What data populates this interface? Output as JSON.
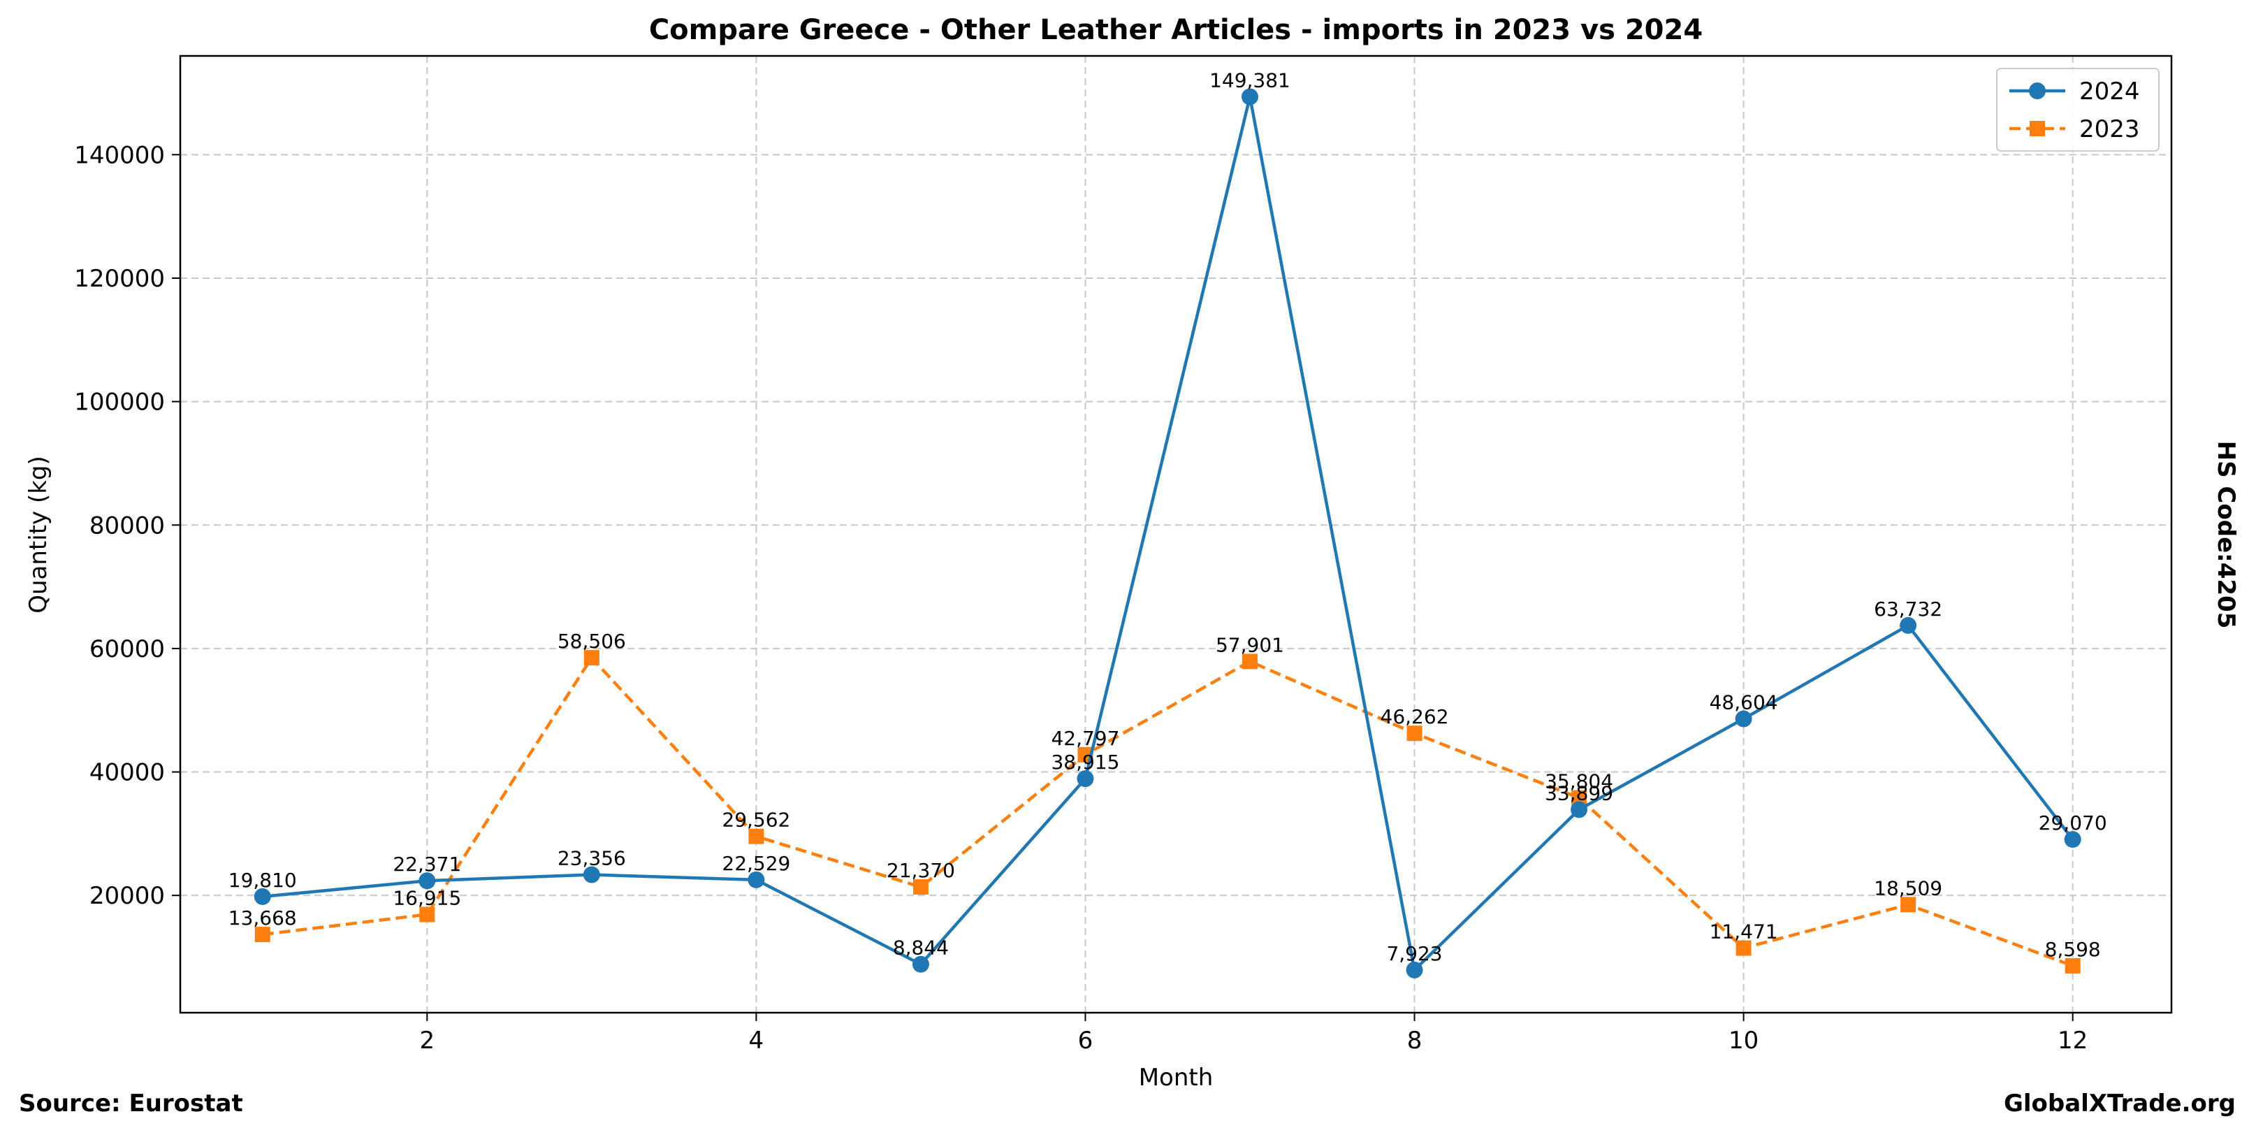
{
  "chart_data": {
    "type": "line",
    "title": "Compare Greece - Other Leather Articles - imports in 2023 vs 2024",
    "xlabel": "Month",
    "ylabel": "Quantity (kg)",
    "xlim": [
      0.5,
      12.6
    ],
    "ylim": [
      1000,
      156000
    ],
    "x_ticks": [
      2,
      4,
      6,
      8,
      10,
      12
    ],
    "y_ticks": [
      20000,
      40000,
      60000,
      80000,
      100000,
      120000,
      140000
    ],
    "grid": true,
    "legend_position": "top-right",
    "x": [
      1,
      2,
      3,
      4,
      5,
      6,
      7,
      8,
      9,
      10,
      11,
      12
    ],
    "series": [
      {
        "name": "2024",
        "color": "#1f77b4",
        "line_style": "solid",
        "marker": "circle",
        "values": [
          19810,
          22371,
          23356,
          22529,
          8844,
          38915,
          149381,
          7923,
          33899,
          48604,
          63732,
          29070
        ],
        "labels": [
          "19,810",
          "22,371",
          "23,356",
          "22,529",
          "8,844",
          "38,915",
          "149,381",
          "7,923",
          "33,899",
          "48,604",
          "63,732",
          "29,070"
        ]
      },
      {
        "name": "2023",
        "color": "#ff7f0e",
        "line_style": "dashed",
        "marker": "square",
        "values": [
          13668,
          16915,
          58506,
          29562,
          21370,
          42797,
          57901,
          46262,
          35804,
          11471,
          18509,
          8598
        ],
        "labels": [
          "13,668",
          "16,915",
          "58,506",
          "29,562",
          "21,370",
          "42,797",
          "57,901",
          "46,262",
          "35,804",
          "11,471",
          "18,509",
          "8,598"
        ]
      }
    ]
  },
  "side_label": "HS Code:4205",
  "footer": {
    "source": "Source: Eurostat",
    "brand": "GlobalXTrade.org"
  }
}
